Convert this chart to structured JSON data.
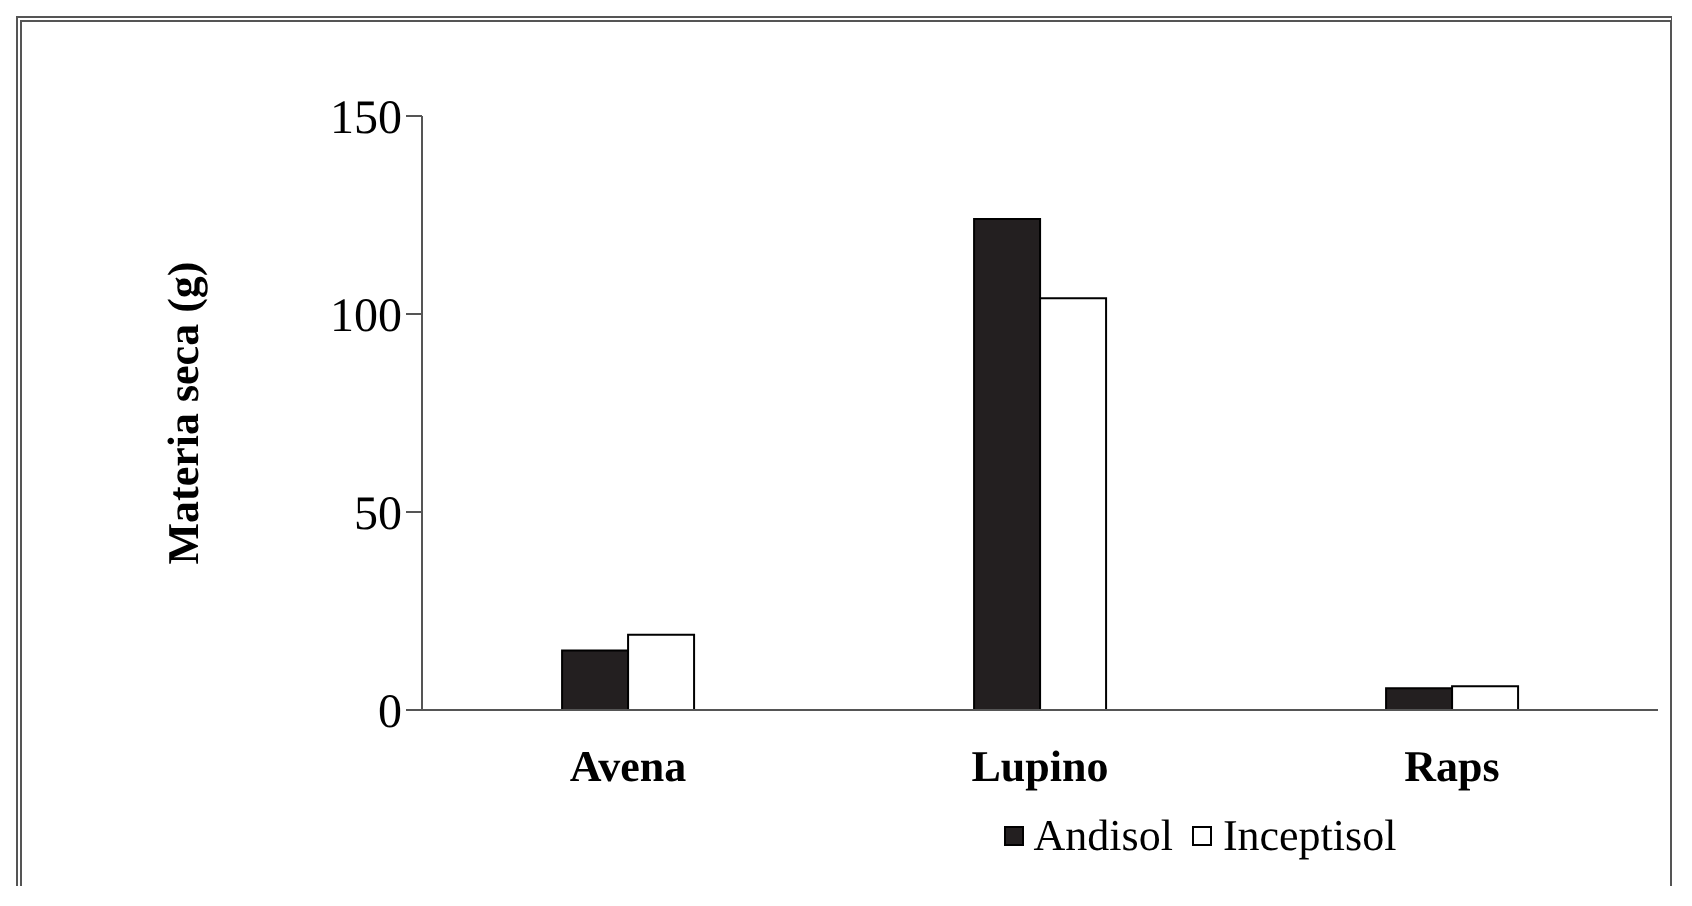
{
  "chart_data": {
    "type": "bar",
    "ylabel": "Materia seca (g)",
    "categories": [
      "Avena",
      "Lupino",
      "Raps"
    ],
    "series": [
      {
        "name": "Andisol",
        "color": "#231f20",
        "values": [
          15,
          124,
          5.5
        ]
      },
      {
        "name": "Inceptisol",
        "color": "#ffffff",
        "values": [
          19,
          104,
          6
        ]
      }
    ],
    "ylim": [
      0,
      150
    ],
    "yticks": [
      0,
      50,
      100,
      150
    ],
    "grid": false,
    "legend": "bottom"
  }
}
